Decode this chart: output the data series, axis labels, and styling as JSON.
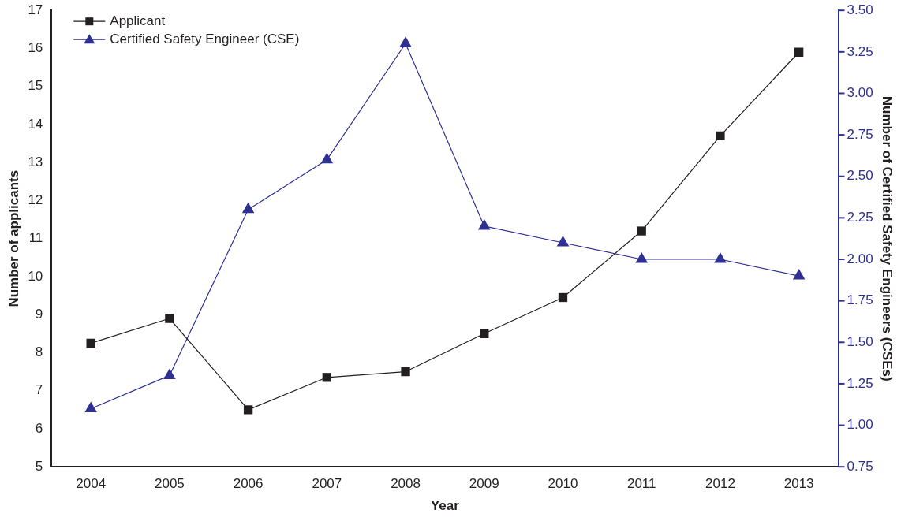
{
  "chart_data": {
    "type": "line",
    "categories": [
      "2004",
      "2005",
      "2006",
      "2007",
      "2008",
      "2009",
      "2010",
      "2011",
      "2012",
      "2013"
    ],
    "series": [
      {
        "name": "Applicant",
        "color": "#231f20",
        "marker": "square",
        "values": [
          8.25,
          8.9,
          6.5,
          7.35,
          7.5,
          8.5,
          9.45,
          11.2,
          13.7,
          15.9
        ]
      },
      {
        "name": "Certified Safety Engineer (CSE)",
        "color": "#2e3192",
        "marker": "triangle",
        "axis": "y2",
        "values": [
          1.1,
          1.3,
          2.3,
          2.6,
          3.3,
          2.2,
          2.1,
          2.0,
          2.0,
          1.9
        ]
      }
    ],
    "xlabel": "Year",
    "ylabel": "Number of applicants",
    "y2label": "Number of Certified Safety Engineers (CSEs)",
    "ylim": [
      5,
      17
    ],
    "yticks": [
      5,
      6,
      7,
      8,
      9,
      10,
      11,
      12,
      13,
      14,
      15,
      16,
      17
    ],
    "y2lim": [
      0.75,
      3.5
    ],
    "y2ticks": [
      {
        "value": 0.75,
        "label": "0.75"
      },
      {
        "value": 1,
        "label": "1.00"
      },
      {
        "value": 1.25,
        "label": "1.25"
      },
      {
        "value": 1.5,
        "label": "1.50"
      },
      {
        "value": 1.75,
        "label": "1.75"
      },
      {
        "value": 2,
        "label": "2.00"
      },
      {
        "value": 2.25,
        "label": "2.25"
      },
      {
        "value": 2.5,
        "label": "2.50"
      },
      {
        "value": 2.75,
        "label": "2.75"
      },
      {
        "value": 3,
        "label": "3.00"
      },
      {
        "value": 3.25,
        "label": "3.25"
      },
      {
        "value": 3.5,
        "label": "3.50"
      }
    ],
    "legend": "top left",
    "grid": false,
    "line_style": "solid"
  }
}
